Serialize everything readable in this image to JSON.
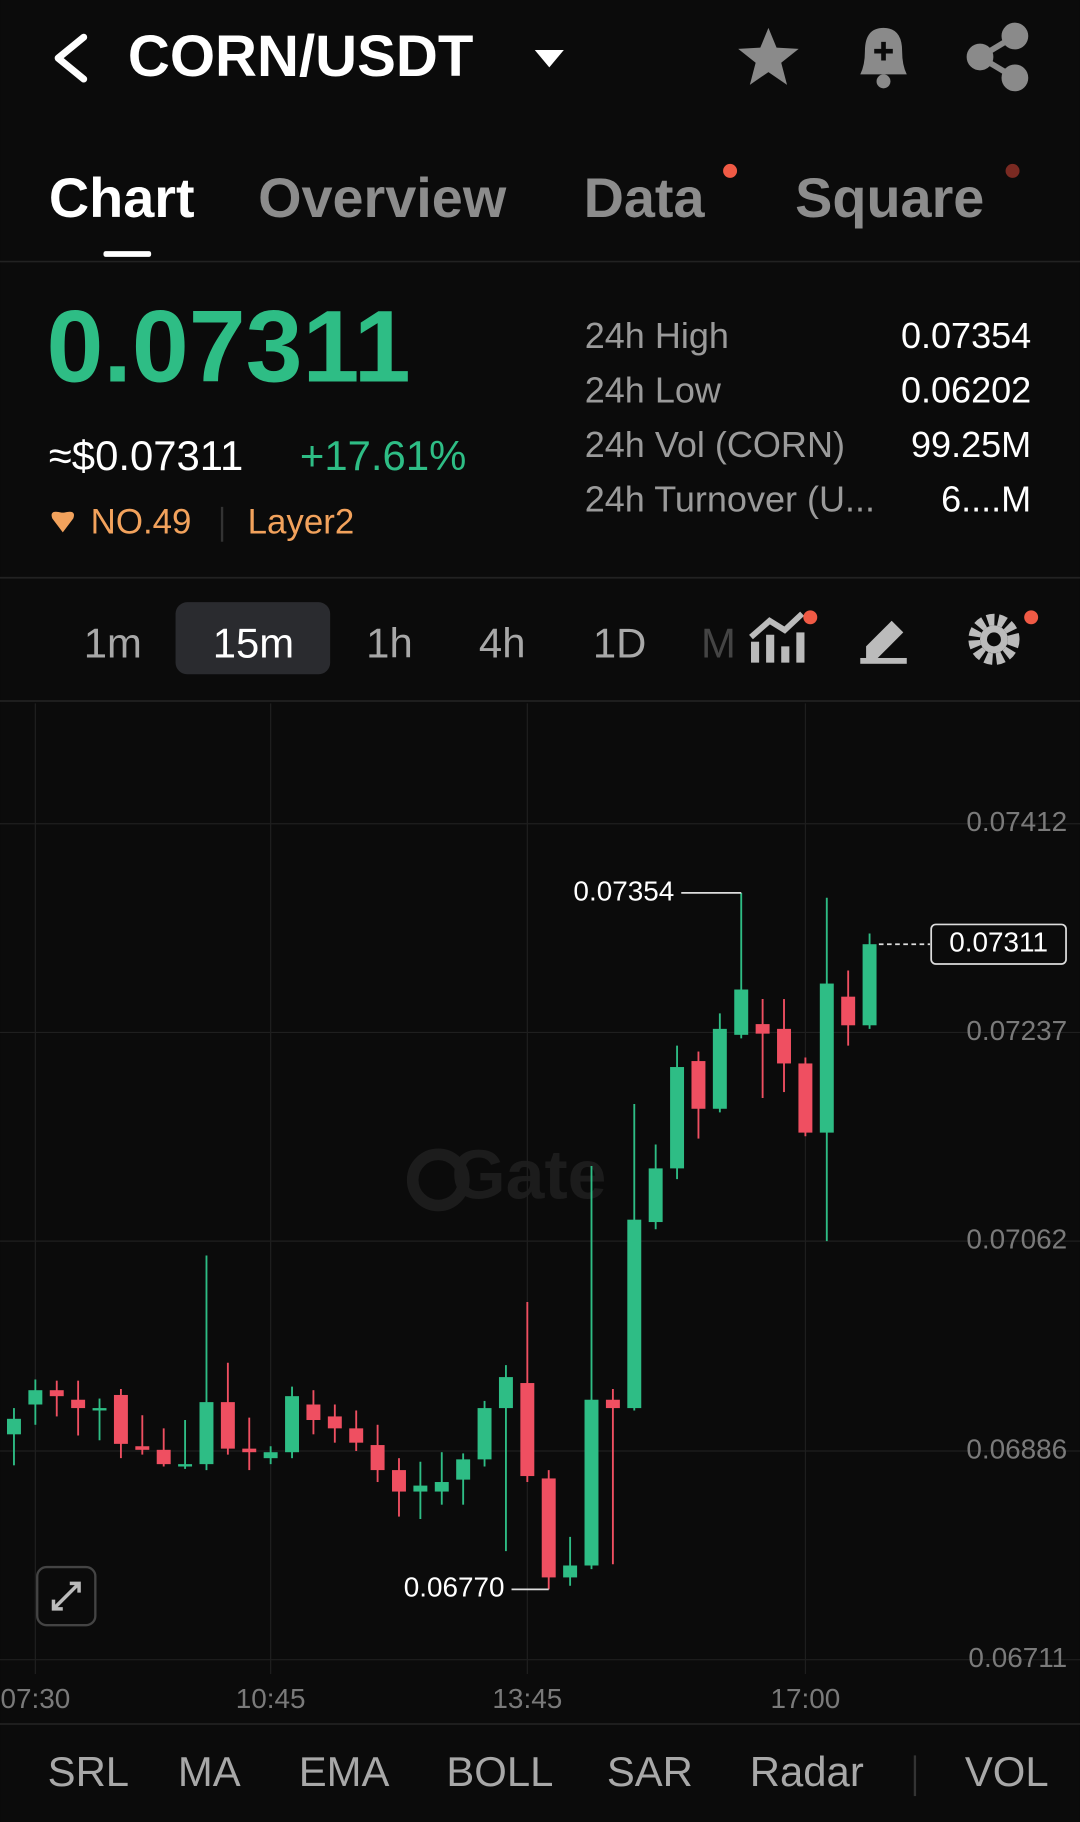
{
  "header": {
    "pair": "CORN/USDT"
  },
  "tabs": [
    "Chart",
    "Overview",
    "Data",
    "Square"
  ],
  "ticker": {
    "price": "0.07311",
    "usd": "≈$0.07311",
    "change": "+17.61%",
    "rank": "NO.49",
    "tag": "Layer2"
  },
  "stats": [
    [
      "24h High",
      "0.07354"
    ],
    [
      "24h Low",
      "0.06202"
    ],
    [
      "24h Vol (CORN)",
      "99.25M"
    ],
    [
      "24h Turnover (U...",
      "6....M"
    ]
  ],
  "intervals": [
    "1m",
    "15m",
    "1h",
    "4h",
    "1D",
    "M"
  ],
  "chart_data": {
    "type": "candlestick",
    "categories": [
      null,
      "07:30",
      null,
      null,
      null,
      null,
      null,
      null,
      null,
      null,
      null,
      null,
      "10:45",
      null,
      null,
      null,
      null,
      null,
      null,
      null,
      null,
      null,
      null,
      null,
      "13:45",
      null,
      null,
      null,
      null,
      null,
      null,
      null,
      null,
      null,
      null,
      null,
      null,
      "17:00",
      null,
      null,
      null
    ],
    "open": [
      0.069,
      0.06925,
      0.06937,
      0.06929,
      0.0692,
      0.06933,
      0.0689,
      0.06887,
      0.06873,
      0.06875,
      0.06927,
      0.06888,
      0.0688,
      0.06885,
      0.06925,
      0.06915,
      0.06905,
      0.06891,
      0.0687,
      0.06852,
      0.06852,
      0.06862,
      0.06879,
      0.06922,
      0.06943,
      0.06863,
      0.0678,
      0.0679,
      0.06929,
      0.06922,
      0.07078,
      0.07123,
      0.07213,
      0.07173,
      0.07235,
      0.07244,
      0.0724,
      0.07211,
      0.07153,
      0.07267,
      0.07243
    ],
    "high": [
      0.06922,
      0.06946,
      0.06945,
      0.06945,
      0.0693,
      0.06938,
      0.06916,
      0.06905,
      0.06912,
      0.0705,
      0.0696,
      0.06914,
      0.0689,
      0.0694,
      0.06937,
      0.06925,
      0.0692,
      0.06908,
      0.0688,
      0.06877,
      0.06885,
      0.06884,
      0.06928,
      0.06958,
      0.07011,
      0.0687,
      0.06814,
      0.07125,
      0.06938,
      0.07177,
      0.07143,
      0.07226,
      0.07221,
      0.07253,
      0.07354,
      0.07265,
      0.07265,
      0.07216,
      0.0735,
      0.07289,
      0.0732
    ],
    "low": [
      0.06874,
      0.06908,
      0.06915,
      0.06899,
      0.06895,
      0.0688,
      0.06883,
      0.06873,
      0.06871,
      0.0687,
      0.06883,
      0.0687,
      0.06875,
      0.0688,
      0.069,
      0.06893,
      0.06886,
      0.0686,
      0.06831,
      0.06829,
      0.06841,
      0.06841,
      0.06873,
      0.06802,
      0.0686,
      0.0677,
      0.06773,
      0.06787,
      0.06791,
      0.0692,
      0.07072,
      0.07114,
      0.07148,
      0.0717,
      0.07232,
      0.07182,
      0.07187,
      0.0715,
      0.07062,
      0.07226,
      0.0724
    ],
    "close": [
      0.06913,
      0.06937,
      0.06932,
      0.06922,
      0.06922,
      0.06892,
      0.06887,
      0.06875,
      0.06875,
      0.06927,
      0.06888,
      0.06885,
      0.06885,
      0.06932,
      0.06912,
      0.06905,
      0.06893,
      0.0687,
      0.06852,
      0.06857,
      0.0686,
      0.06879,
      0.06922,
      0.06948,
      0.06865,
      0.0678,
      0.0679,
      0.06929,
      0.06922,
      0.0708,
      0.07123,
      0.07208,
      0.07173,
      0.0724,
      0.07273,
      0.07236,
      0.07211,
      0.07153,
      0.07278,
      0.07243,
      0.07311
    ],
    "up_color": "#2ebd85",
    "down_color": "#ef4f61",
    "ylim": [
      0.06699,
      0.07513
    ],
    "yticks": [
      0.07412,
      0.07237,
      0.07062,
      0.06886,
      0.06711
    ],
    "grid": true,
    "annotations": {
      "high": "0.07354",
      "low": "0.06770",
      "last": "0.07311"
    },
    "watermark": "Gate"
  },
  "indicators": [
    "SRL",
    "MA",
    "EMA",
    "BOLL",
    "SAR",
    "Radar",
    "VOL"
  ]
}
